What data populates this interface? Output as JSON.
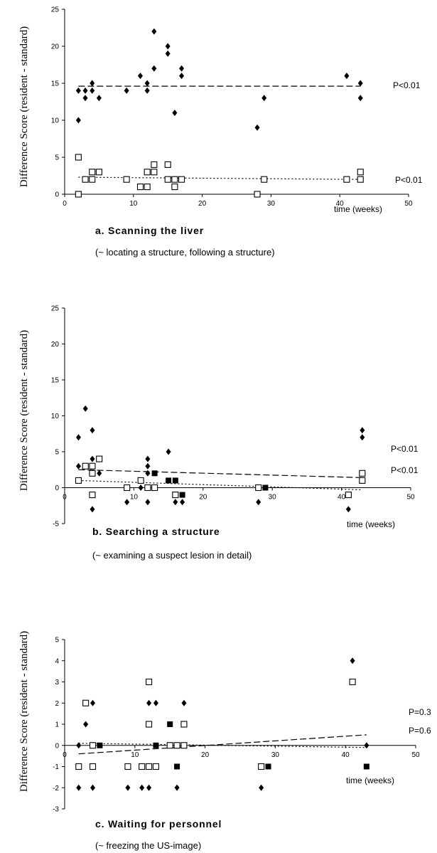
{
  "chart_data": [
    {
      "type": "scatter",
      "caption": "a. Scanning the liver",
      "note": "(~ locating a structure, following a structure)",
      "xlabel": "time (weeks)",
      "ylabel": "Difference Score (resident - standard)",
      "xlim": [
        0,
        50
      ],
      "ylim": [
        0,
        25
      ],
      "xticks": [
        0,
        10,
        20,
        30,
        40,
        50
      ],
      "yticks": [
        0,
        5,
        10,
        15,
        20,
        25
      ],
      "series": [
        {
          "marker": "filled-diamond",
          "points": [
            [
              2,
              14
            ],
            [
              2,
              10
            ],
            [
              3,
              13
            ],
            [
              3,
              14
            ],
            [
              4,
              15
            ],
            [
              4,
              14
            ],
            [
              5,
              13
            ],
            [
              9,
              14
            ],
            [
              11,
              16
            ],
            [
              12,
              15
            ],
            [
              12,
              14
            ],
            [
              13,
              22
            ],
            [
              13,
              17
            ],
            [
              15,
              20
            ],
            [
              15,
              19
            ],
            [
              16,
              11
            ],
            [
              17,
              17
            ],
            [
              17,
              16
            ],
            [
              28,
              9
            ],
            [
              29,
              13
            ],
            [
              41,
              16
            ],
            [
              43,
              15
            ],
            [
              43,
              13
            ]
          ]
        },
        {
          "marker": "open-square",
          "points": [
            [
              2,
              5
            ],
            [
              2,
              0
            ],
            [
              3,
              2
            ],
            [
              4,
              3
            ],
            [
              4,
              2
            ],
            [
              5,
              3
            ],
            [
              9,
              2
            ],
            [
              11,
              1
            ],
            [
              12,
              1
            ],
            [
              12,
              3
            ],
            [
              13,
              4
            ],
            [
              13,
              3
            ],
            [
              15,
              4
            ],
            [
              15,
              2
            ],
            [
              16,
              1
            ],
            [
              16,
              2
            ],
            [
              17,
              2
            ],
            [
              28,
              0
            ],
            [
              29,
              2
            ],
            [
              41,
              2
            ],
            [
              43,
              3
            ],
            [
              43,
              2
            ]
          ]
        }
      ],
      "trendlines": [
        {
          "style": "dashed",
          "from": [
            2,
            14.6
          ],
          "to": [
            43,
            14.6
          ],
          "label": "P<0.01"
        },
        {
          "style": "dotted",
          "from": [
            2,
            2.3
          ],
          "to": [
            43,
            2.0
          ],
          "label": "P<0.01"
        }
      ]
    },
    {
      "type": "scatter",
      "caption": "b. Searching a structure",
      "note": "(~ examining a suspect lesion in detail)",
      "xlabel": "time (weeks)",
      "ylabel": "Difference Score (resident - standard)",
      "xlim": [
        0,
        50
      ],
      "ylim": [
        -5,
        25
      ],
      "xticks": [
        0,
        10,
        20,
        30,
        40,
        50
      ],
      "yticks": [
        -5,
        0,
        5,
        10,
        15,
        20,
        25
      ],
      "series": [
        {
          "marker": "filled-diamond",
          "points": [
            [
              2,
              7
            ],
            [
              2,
              3
            ],
            [
              3,
              11
            ],
            [
              4,
              8
            ],
            [
              4,
              4
            ],
            [
              4,
              -3
            ],
            [
              5,
              2
            ],
            [
              9,
              -2
            ],
            [
              11,
              0
            ],
            [
              12,
              4
            ],
            [
              12,
              3
            ],
            [
              12,
              2
            ],
            [
              12,
              -2
            ],
            [
              15,
              5
            ],
            [
              16,
              -2
            ],
            [
              17,
              -2
            ],
            [
              28,
              -2
            ],
            [
              41,
              -3
            ],
            [
              43,
              8
            ],
            [
              43,
              7
            ]
          ]
        },
        {
          "marker": "open-square",
          "points": [
            [
              2,
              1
            ],
            [
              3,
              3
            ],
            [
              4,
              3
            ],
            [
              4,
              2
            ],
            [
              4,
              -1
            ],
            [
              5,
              4
            ],
            [
              9,
              0
            ],
            [
              11,
              1
            ],
            [
              12,
              0
            ],
            [
              13,
              0
            ],
            [
              16,
              -1
            ],
            [
              28,
              0
            ],
            [
              41,
              -1
            ],
            [
              43,
              2
            ],
            [
              43,
              1
            ]
          ]
        },
        {
          "marker": "filled-square",
          "points": [
            [
              13,
              2
            ],
            [
              15,
              1
            ],
            [
              16,
              1
            ],
            [
              17,
              -1
            ],
            [
              29,
              0
            ]
          ]
        }
      ],
      "trendlines": [
        {
          "style": "dashed",
          "from": [
            2,
            2.5
          ],
          "to": [
            43,
            1.4
          ],
          "label": "P<0.01"
        },
        {
          "style": "dotted",
          "from": [
            2,
            1.0
          ],
          "to": [
            43,
            -0.3
          ],
          "label": "P<0.01"
        }
      ]
    },
    {
      "type": "scatter",
      "caption": "c. Waiting for personnel",
      "note": "(~ freezing the US-image)",
      "xlabel": "time (weeks)",
      "ylabel": "Difference Score (resident - standard)",
      "xlim": [
        0,
        50
      ],
      "ylim": [
        -3,
        5
      ],
      "xticks": [
        0,
        10,
        20,
        30,
        40,
        50
      ],
      "yticks": [
        -3,
        -2,
        -1,
        0,
        1,
        2,
        3,
        4,
        5
      ],
      "series": [
        {
          "marker": "filled-diamond",
          "points": [
            [
              2,
              0
            ],
            [
              2,
              -2
            ],
            [
              3,
              1
            ],
            [
              4,
              2
            ],
            [
              4,
              0
            ],
            [
              4,
              -2
            ],
            [
              9,
              -2
            ],
            [
              11,
              -2
            ],
            [
              12,
              2
            ],
            [
              12,
              -2
            ],
            [
              13,
              2
            ],
            [
              16,
              -2
            ],
            [
              17,
              2
            ],
            [
              28,
              -2
            ],
            [
              41,
              4
            ],
            [
              43,
              0
            ]
          ]
        },
        {
          "marker": "open-square",
          "points": [
            [
              2,
              -1
            ],
            [
              3,
              2
            ],
            [
              4,
              0
            ],
            [
              4,
              -1
            ],
            [
              9,
              -1
            ],
            [
              11,
              -1
            ],
            [
              12,
              -1
            ],
            [
              12,
              3
            ],
            [
              12,
              1
            ],
            [
              13,
              -1
            ],
            [
              15,
              0
            ],
            [
              16,
              0
            ],
            [
              17,
              0
            ],
            [
              17,
              1
            ],
            [
              28,
              -1
            ],
            [
              41,
              3
            ]
          ]
        },
        {
          "marker": "filled-square",
          "points": [
            [
              5,
              0
            ],
            [
              13,
              0
            ],
            [
              15,
              1
            ],
            [
              16,
              -1
            ],
            [
              29,
              -1
            ],
            [
              43,
              -1
            ]
          ]
        }
      ],
      "trendlines": [
        {
          "style": "dashed",
          "from": [
            2,
            -0.4
          ],
          "to": [
            43,
            0.5
          ],
          "label": "P=0.3"
        },
        {
          "style": "dotted",
          "from": [
            2,
            0.1
          ],
          "to": [
            43,
            -0.1
          ],
          "label": "P=0.6"
        }
      ]
    }
  ]
}
